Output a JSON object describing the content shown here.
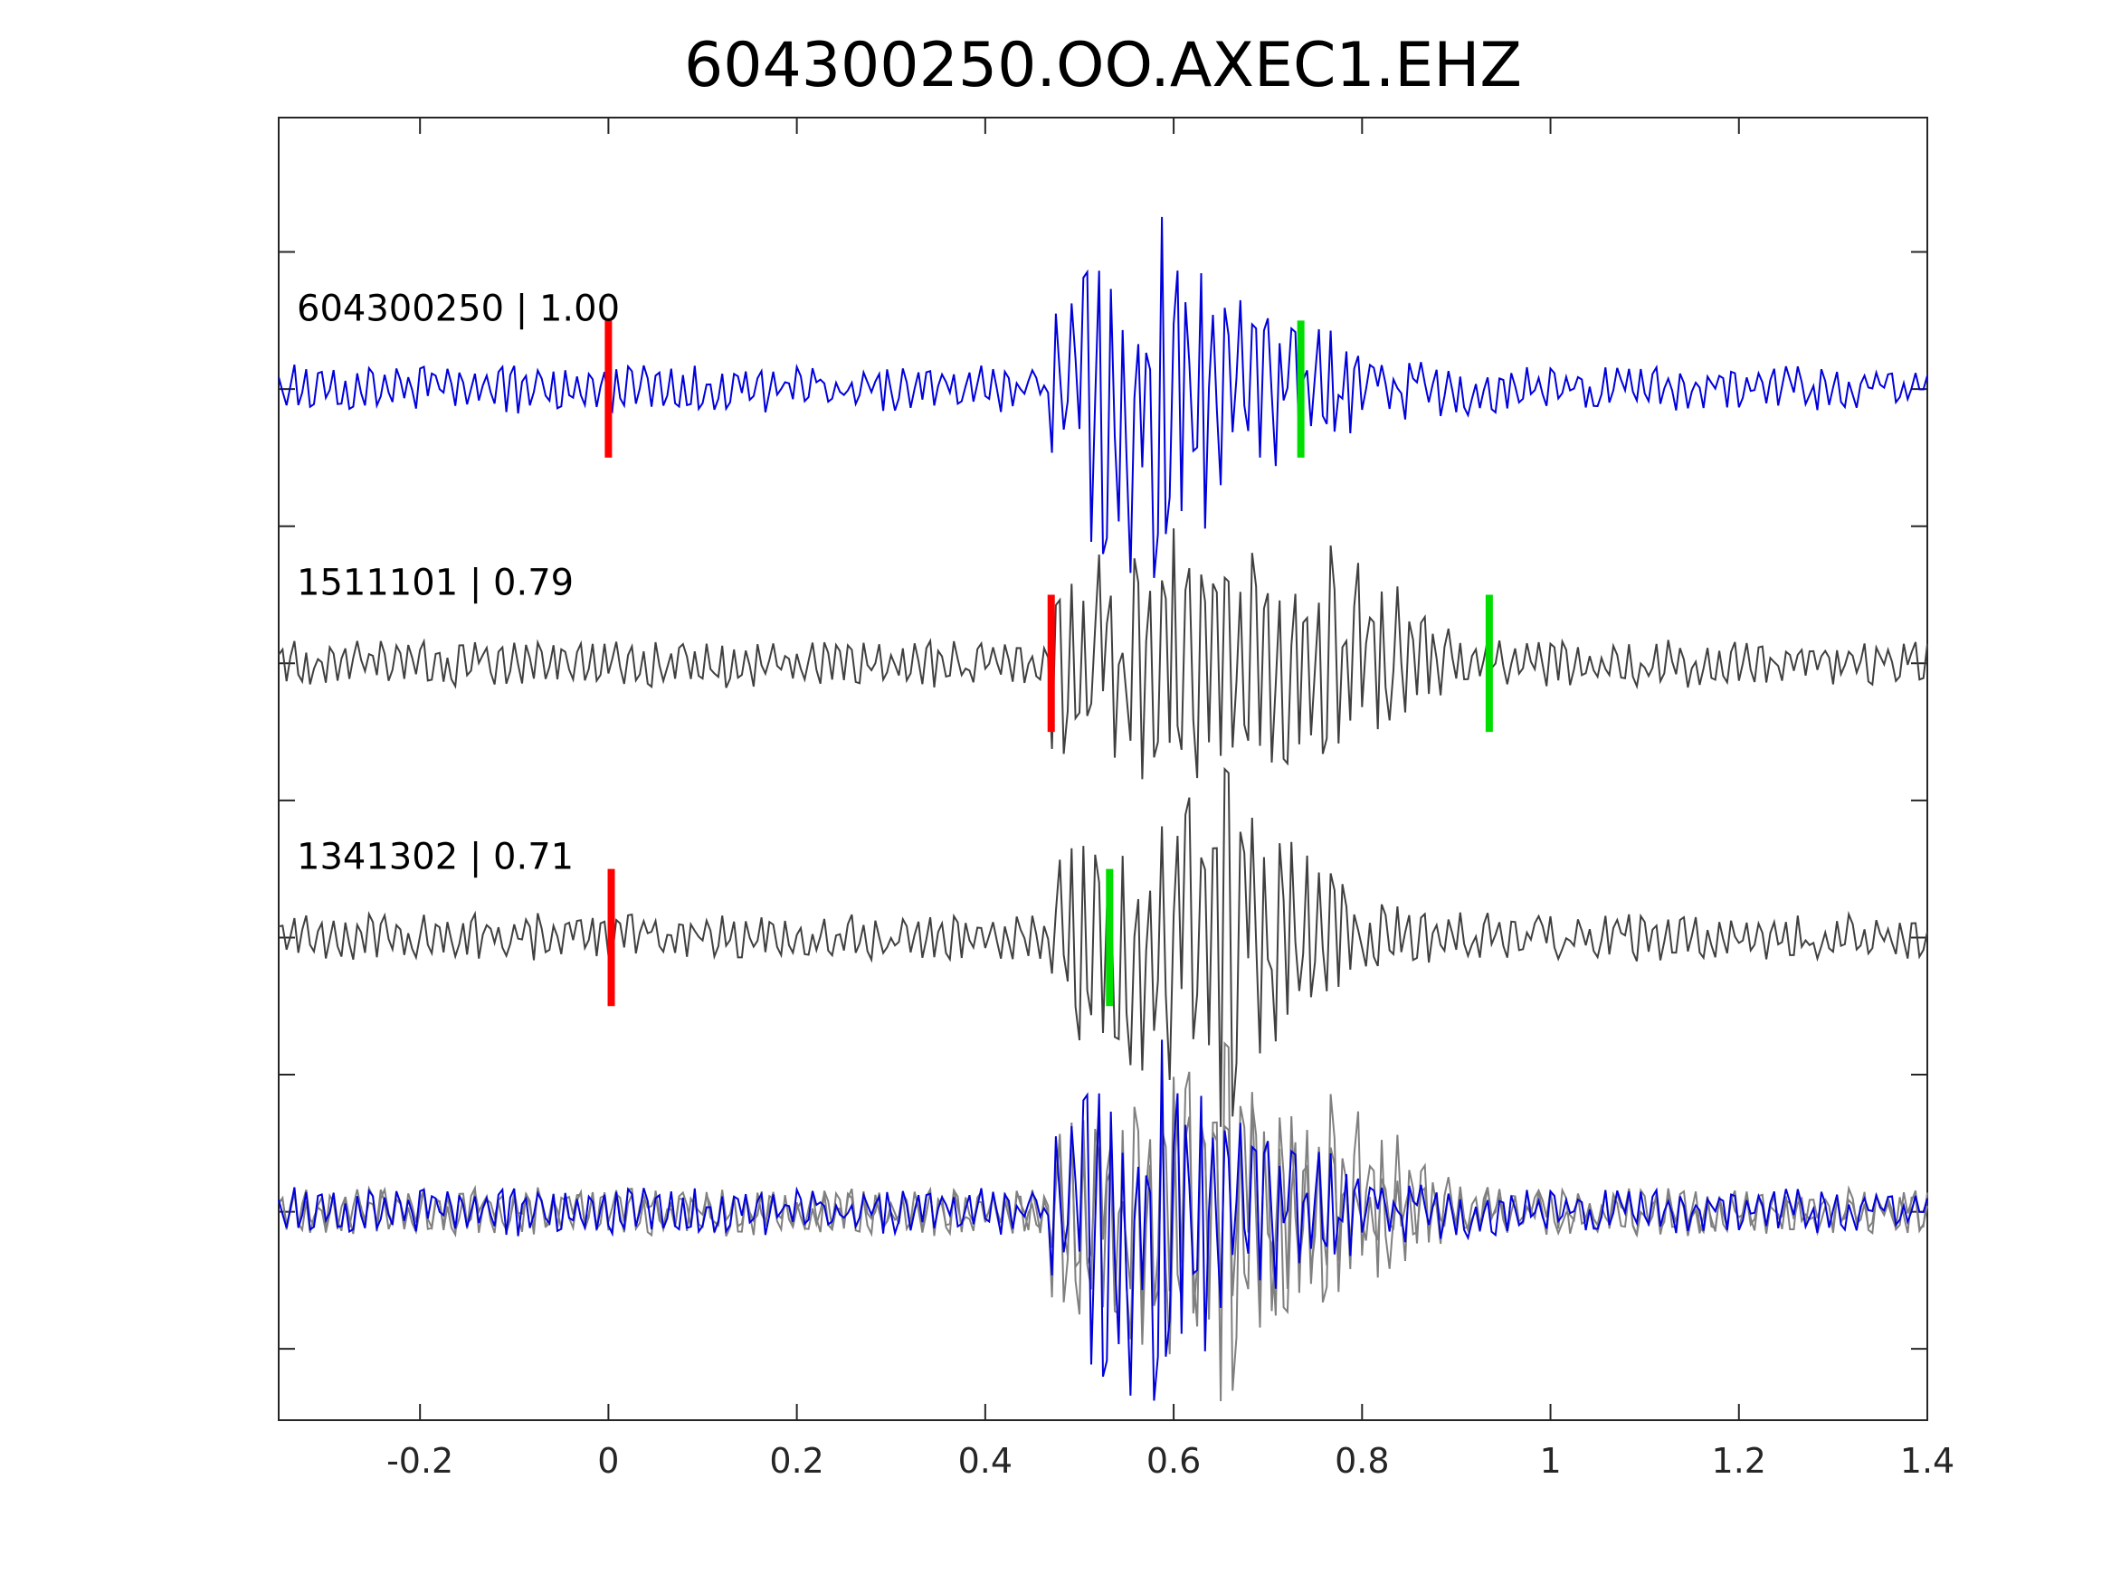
{
  "chart_data": {
    "type": "line",
    "title": "604300250.OO.AXEC1.EHZ",
    "xlabel": "",
    "ylabel": "",
    "xlim": [
      -0.35,
      1.4
    ],
    "x_ticks": [
      -0.2,
      0,
      0.2,
      0.4,
      0.6,
      0.8,
      1,
      1.2,
      1.4
    ],
    "x_tick_labels": [
      "-0.2",
      "0",
      "0.2",
      "0.4",
      "0.6",
      "0.8",
      "1",
      "1.2",
      "1.4"
    ],
    "y_tick_count": 9,
    "grid": false,
    "colors": {
      "primary_trace": "#0000dd",
      "matched_trace": "#404040",
      "overlay_trace": "#808080",
      "p_pick": "#ff0000",
      "s_pick": "#00dd00",
      "axes": "#262626"
    },
    "traces": [
      {
        "label": "604300250 | 1.00",
        "event_id": "604300250",
        "correlation": 1.0,
        "p_pick": 0.0,
        "s_pick": 0.735,
        "onset": 0.47,
        "seed": 7,
        "kind": "primary"
      },
      {
        "label": "1511101 | 0.79",
        "event_id": "1511101",
        "correlation": 0.79,
        "p_pick": 0.47,
        "s_pick": 0.935,
        "onset": 0.47,
        "seed": 21,
        "kind": "matched"
      },
      {
        "label": "1341302 | 0.71",
        "event_id": "1341302",
        "correlation": 0.71,
        "p_pick": 0.003,
        "s_pick": 0.532,
        "onset": 0.47,
        "seed": 37,
        "kind": "matched"
      }
    ],
    "overlay": {
      "label": "",
      "description": "stack of all traces aligned"
    }
  }
}
